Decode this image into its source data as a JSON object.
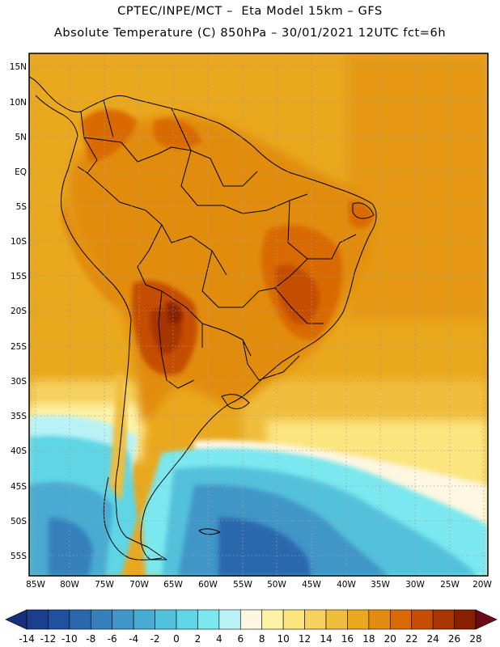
{
  "header": {
    "line1": "CPTEC/INPE/MCT –  Eta Model 15km – GFS",
    "line2": "Absolute Temperature (C) 850hPa – 30/01/2021 12UTC fct=6h"
  },
  "map": {
    "lat_labels": [
      "15N",
      "10N",
      "5N",
      "EQ",
      "5S",
      "10S",
      "15S",
      "20S",
      "25S",
      "30S",
      "35S",
      "40S",
      "45S",
      "50S",
      "55S"
    ],
    "lon_labels": [
      "85W",
      "80W",
      "75W",
      "70W",
      "65W",
      "60W",
      "55W",
      "50W",
      "45W",
      "40W",
      "35W",
      "30W",
      "25W",
      "20W"
    ]
  },
  "colorbar": {
    "labels": [
      "-14",
      "-12",
      "-10",
      "-8",
      "-6",
      "-4",
      "-2",
      "0",
      "2",
      "4",
      "6",
      "8",
      "10",
      "12",
      "14",
      "16",
      "18",
      "20",
      "22",
      "24",
      "26",
      "28"
    ],
    "colors": [
      "#1b3f8c",
      "#21509e",
      "#2b67ad",
      "#3580bb",
      "#3f96c7",
      "#48abd2",
      "#52c1dc",
      "#5fd5e6",
      "#7ae8ee",
      "#b9f2f6",
      "#fdf6e0",
      "#fdf2a6",
      "#fbe57f",
      "#f6d160",
      "#f0be3e",
      "#eaa81e",
      "#e28c0f",
      "#d96a06",
      "#c54d04",
      "#a83504",
      "#862001"
    ],
    "under_color": "#1a2f7a",
    "over_color": "#6a0b17"
  }
}
